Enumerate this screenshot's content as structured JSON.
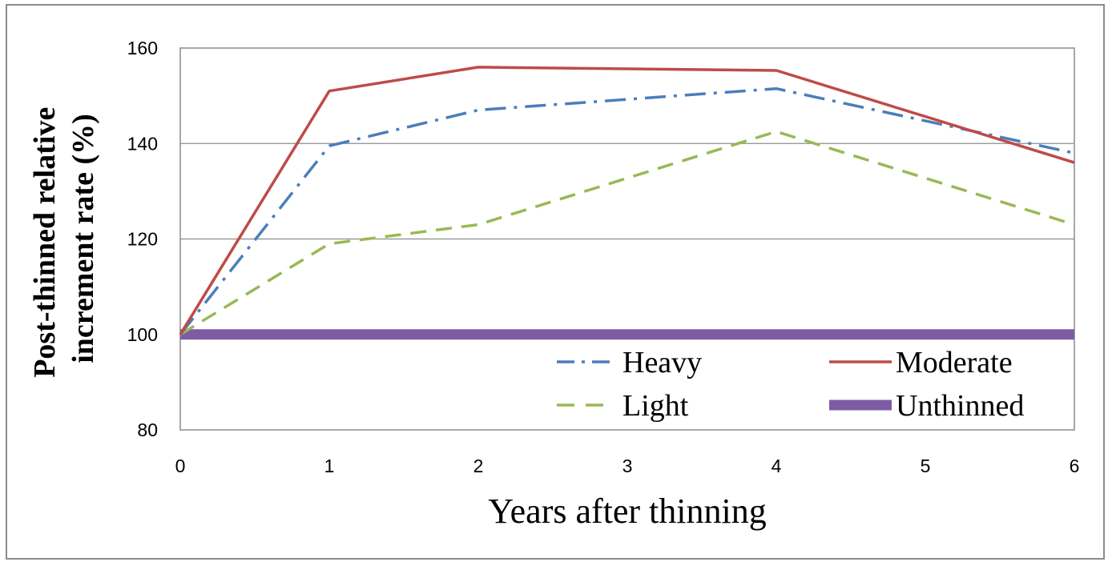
{
  "chart_data": {
    "type": "line",
    "title": "",
    "xlabel": "Years after thinning",
    "ylabel_lines": [
      "Post-thinned  relative",
      "increment  rate  (%)"
    ],
    "x": [
      0,
      1,
      2,
      3,
      4,
      5,
      6
    ],
    "xlim": [
      0,
      6
    ],
    "ylim": [
      80,
      160
    ],
    "yticks": [
      80,
      100,
      120,
      140,
      160
    ],
    "xticks": [
      0,
      1,
      2,
      3,
      4,
      5,
      6
    ],
    "grid": "horizontal",
    "legend_position": "bottom-right",
    "series": [
      {
        "name": "Heavy",
        "color": "#4a7ebb",
        "style": "dashdot",
        "values": [
          100,
          139.5,
          147,
          null,
          151.5,
          null,
          138
        ]
      },
      {
        "name": "Moderate",
        "color": "#be4b48",
        "style": "solid",
        "values": [
          100,
          151,
          156,
          null,
          155.3,
          null,
          136
        ]
      },
      {
        "name": "Light",
        "color": "#98b954",
        "style": "dashed",
        "values": [
          100,
          119,
          123,
          null,
          142.5,
          null,
          123
        ]
      },
      {
        "name": "Unthinned",
        "color": "#7e5ca3",
        "style": "thick",
        "values": [
          100,
          100,
          100,
          100,
          100,
          100,
          100
        ]
      }
    ]
  }
}
